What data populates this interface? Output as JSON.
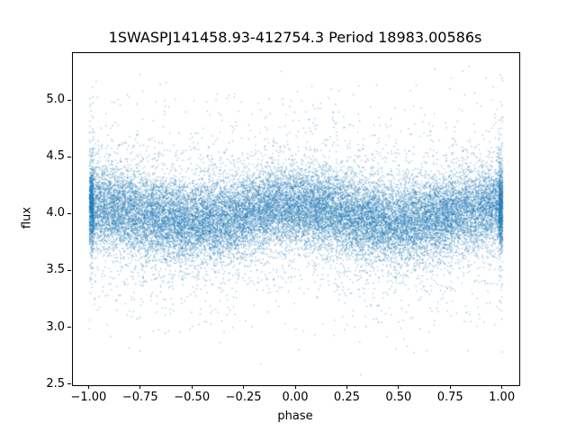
{
  "title": "1SWASPJ141458.93-412754.3 Period 18983.00586s",
  "chart_data": {
    "type": "scatter",
    "title": "1SWASPJ141458.93-412754.3 Period 18983.00586s",
    "xlabel": "phase",
    "ylabel": "flux",
    "xlim": [
      -1.08,
      1.08
    ],
    "ylim": [
      2.497,
      5.42
    ],
    "x_ticks": [
      -1.0,
      -0.75,
      -0.5,
      -0.25,
      0.0,
      0.25,
      0.5,
      0.75,
      1.0
    ],
    "x_tick_labels": [
      "−1.00",
      "−0.75",
      "−0.50",
      "−0.25",
      "0.00",
      "0.25",
      "0.50",
      "0.75",
      "1.00"
    ],
    "y_ticks": [
      2.5,
      3.0,
      3.5,
      4.0,
      4.5,
      5.0
    ],
    "y_tick_labels": [
      "2.5",
      "3.0",
      "3.5",
      "4.0",
      "4.5",
      "5.0"
    ],
    "marker_color": "#1f77b4",
    "marker_alpha": 0.45,
    "marker_size_px": 1.3,
    "n_points": 28000,
    "x_distribution": "uniform",
    "x_range": [
      -1.0,
      1.0
    ],
    "edge_cluster_fraction": 0.05,
    "flux_mean": 4.0,
    "modulation_amplitude": 0.07,
    "modulation": "mean flux ≈ 4.0 + 0.07·cos(2π·phase)",
    "noise_sigma_core": 0.17,
    "noise_sigma_tail": 0.42,
    "tail_fraction": 0.16,
    "flux_min": 2.52,
    "flux_max": 5.38,
    "seed": 42,
    "grid": false,
    "legend": "none"
  }
}
